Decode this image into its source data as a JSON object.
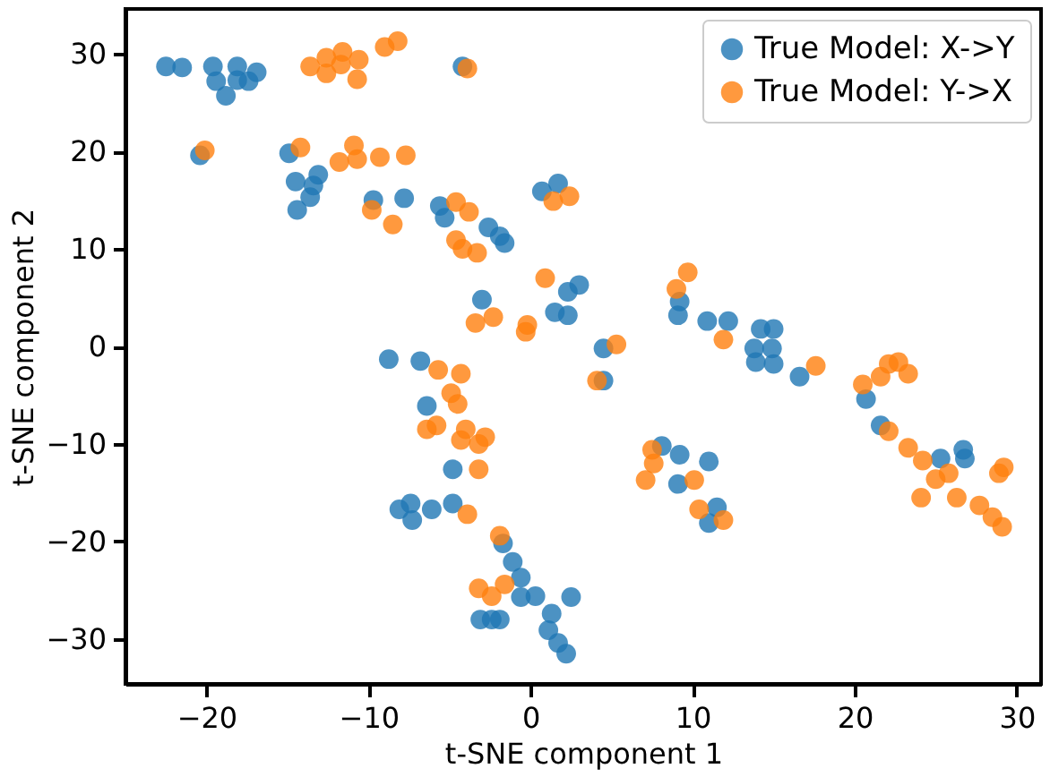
{
  "chart_data": {
    "type": "scatter",
    "xlabel": "t-SNE component 1",
    "ylabel": "t-SNE component 2",
    "xlim": [
      -25,
      31.5
    ],
    "ylim": [
      -34.6,
      34.6
    ],
    "xticks": [
      -20,
      -10,
      0,
      10,
      20,
      30
    ],
    "yticks": [
      -30,
      -20,
      -10,
      0,
      10,
      20,
      30
    ],
    "grid": false,
    "legend": "top right",
    "marker": "circle",
    "series": [
      {
        "name": "True Model: X->Y",
        "color": "#1f77b4",
        "x": [
          -22.5,
          -21.5,
          -19.6,
          -19.4,
          -18.8,
          -18.1,
          -18.1,
          -17.4,
          -16.9,
          -20.4,
          -14.9,
          -14.5,
          -14.4,
          -13.6,
          -13.4,
          -13.1,
          -9.7,
          -7.8,
          -4.2,
          -5.6,
          -5.3,
          -2.6,
          -1.9,
          -1.6,
          -3.0,
          0.7,
          1.7,
          3.0,
          2.3,
          1.5,
          2.3,
          9.2,
          9.1,
          10.9,
          12.2,
          14.2,
          15.0,
          13.8,
          14.9,
          4.5,
          13.9,
          15.0,
          16.6,
          4.5,
          20.7,
          21.6,
          25.3,
          26.7,
          26.8,
          8.1,
          9.2,
          11.0,
          9.1,
          11.5,
          11.0,
          -1.7,
          -1.1,
          -0.6,
          -0.6,
          0.3,
          -1.9,
          1.3,
          1.1,
          1.7,
          2.2,
          2.5,
          -8.75,
          -6.8,
          -6.4,
          -4.8,
          -8.1,
          -7.4,
          -7.3,
          -6.1,
          -4.8,
          -3.1,
          -2.4
        ],
        "values": [
          28.7,
          28.6,
          28.7,
          27.2,
          25.7,
          27.3,
          28.7,
          27.2,
          28.1,
          19.6,
          19.8,
          16.9,
          14.0,
          15.3,
          16.5,
          17.6,
          15.0,
          15.2,
          28.7,
          14.4,
          13.2,
          12.2,
          11.3,
          10.6,
          4.8,
          15.9,
          16.7,
          6.3,
          5.6,
          3.5,
          3.2,
          4.6,
          3.2,
          2.6,
          2.6,
          1.8,
          1.8,
          -0.2,
          -0.2,
          -0.2,
          -1.6,
          -1.8,
          -3.1,
          -3.5,
          -5.4,
          -8.1,
          -11.5,
          -10.6,
          -11.5,
          -10.2,
          -11.1,
          -11.8,
          -14.1,
          -16.5,
          -18.1,
          -20.2,
          -22.1,
          -23.7,
          -25.7,
          -25.6,
          -28.0,
          -27.4,
          -29.1,
          -30.4,
          -31.5,
          -25.7,
          -1.3,
          -1.5,
          -6.1,
          -12.6,
          -16.7,
          -16.1,
          -17.8,
          -16.7,
          -16.1,
          -28.0,
          -28.0
        ]
      },
      {
        "name": "True Model: Y->X",
        "color": "#ff7f0e",
        "x": [
          -13.6,
          -12.6,
          -12.6,
          -11.6,
          -11.7,
          -10.6,
          -10.7,
          -9.0,
          -8.2,
          -3.9,
          -20.1,
          -14.2,
          -11.8,
          -10.9,
          -10.7,
          -9.3,
          -7.7,
          -9.8,
          -8.5,
          -4.6,
          -3.8,
          -4.6,
          -4.2,
          -3.3,
          -3.4,
          -2.3,
          1.4,
          2.4,
          0.9,
          -0.2,
          -0.3,
          5.3,
          9.7,
          9.0,
          11.9,
          17.6,
          4.1,
          20.5,
          21.6,
          22.1,
          22.7,
          23.3,
          22.1,
          23.3,
          24.2,
          25.0,
          25.8,
          24.1,
          26.3,
          27.7,
          28.5,
          29.1,
          28.9,
          29.2,
          7.5,
          7.6,
          7.1,
          10.1,
          10.4,
          11.9,
          -1.9,
          -1.6,
          -5.7,
          -4.3,
          -4.9,
          -4.5,
          -6.4,
          -5.8,
          -4.0,
          -4.3,
          -3.2,
          -2.8,
          -3.2,
          -3.9,
          -3.2,
          -2.4
        ],
        "values": [
          28.7,
          29.6,
          28.0,
          30.2,
          28.9,
          29.4,
          27.4,
          30.7,
          31.3,
          28.5,
          20.1,
          20.4,
          18.9,
          20.6,
          19.2,
          19.4,
          19.6,
          14.0,
          12.5,
          14.8,
          13.8,
          10.9,
          10.0,
          9.6,
          2.4,
          3.0,
          14.9,
          15.4,
          7.0,
          2.2,
          1.5,
          0.2,
          7.6,
          5.9,
          0.7,
          -2.0,
          -3.5,
          -3.9,
          -3.1,
          -1.8,
          -1.6,
          -2.8,
          -8.7,
          -10.4,
          -11.7,
          -13.6,
          -13.0,
          -15.5,
          -15.5,
          -16.3,
          -17.5,
          -18.5,
          -13.0,
          -12.4,
          -10.6,
          -12.0,
          -13.7,
          -13.7,
          -16.7,
          -17.8,
          -19.4,
          -24.4,
          -2.4,
          -2.8,
          -4.8,
          -5.9,
          -8.5,
          -8.1,
          -8.5,
          -9.6,
          -10.0,
          -9.3,
          -12.6,
          -17.2,
          -24.8,
          -25.6
        ]
      }
    ]
  }
}
